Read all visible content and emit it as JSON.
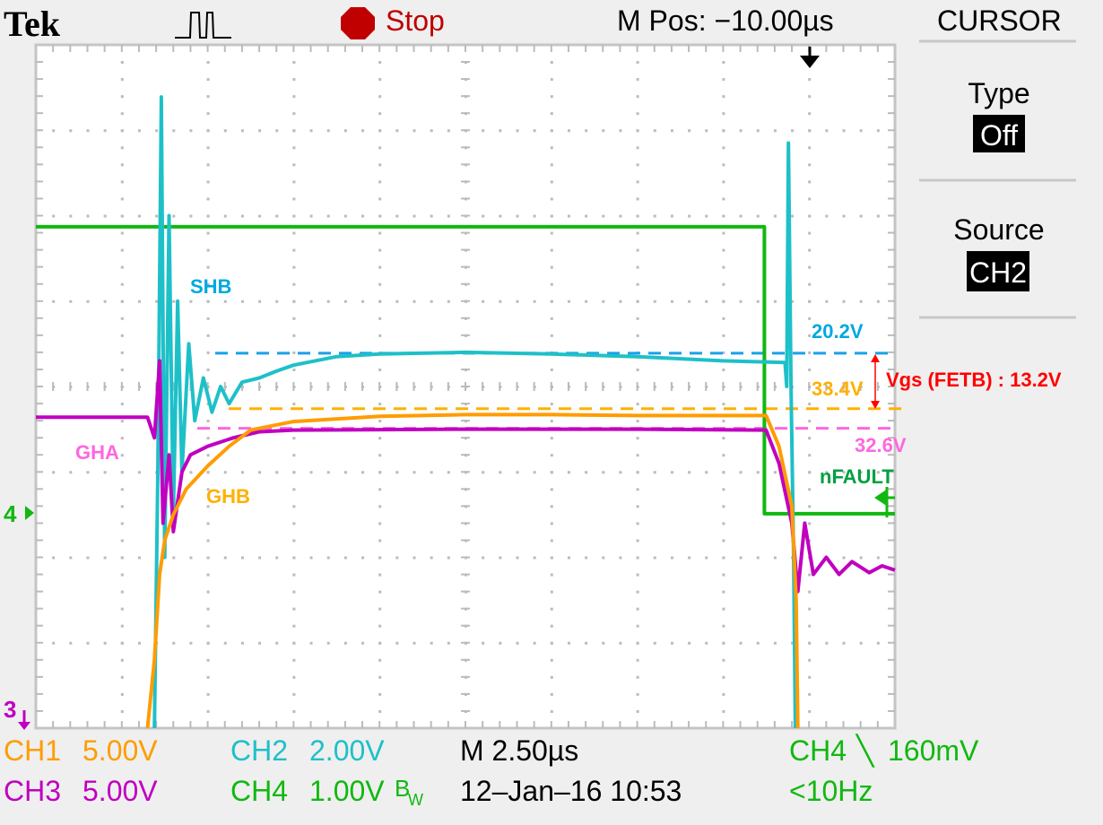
{
  "header": {
    "brand": "Tek",
    "acquire_icon": "pulse-waveform-icon",
    "run_state_icon": "stop-octagon-icon",
    "run_state": "Stop",
    "m_pos": "M Pos: −10.00µs"
  },
  "side_menu": {
    "title": "CURSOR",
    "items": [
      {
        "label": "Type",
        "value": "Off"
      },
      {
        "label": "Source",
        "value": "CH2"
      }
    ]
  },
  "status": {
    "ch1": {
      "name": "CH1",
      "scale": "5.00V"
    },
    "ch2": {
      "name": "CH2",
      "scale": "2.00V"
    },
    "ch3": {
      "name": "CH3",
      "scale": "5.00V"
    },
    "ch4": {
      "name": "CH4",
      "scale": "1.00V",
      "bw_mark": "B",
      "bw_sub": "W"
    },
    "timebase": "M 2.50µs",
    "date_time": "12–Jan–16 10:53",
    "trigger": {
      "source": "CH4",
      "slope_icon": "falling-edge-icon",
      "slope": "╲",
      "level": "160mV"
    },
    "trigger_freq": "<10Hz"
  },
  "markers": {
    "ch4": "4",
    "ch3": "3"
  },
  "colors": {
    "ch1": "#ff9c00",
    "ch2": "#1ec0c8",
    "ch3": "#c000c0",
    "ch4": "#10b810",
    "stop": "#c00000",
    "annotation_red": "#ff0000",
    "shb_label": "#00a8e0",
    "gha_label": "#ff66e0",
    "ghb_label": "#ffb000",
    "nfault_label": "#00a040"
  },
  "chart_data": {
    "type": "line",
    "grid": true,
    "x_unit": "div",
    "y_unit": "div",
    "xlim": [
      0,
      10
    ],
    "ylim": [
      0,
      8
    ],
    "series": [
      {
        "name": "nFAULT",
        "channel": "CH4",
        "color": "#10b810",
        "points": [
          [
            0,
            5.87
          ],
          [
            8.48,
            5.87
          ],
          [
            8.48,
            2.51
          ],
          [
            10,
            2.51
          ]
        ]
      },
      {
        "name": "SHB",
        "channel": "CH2",
        "color": "#1ec0c8",
        "points": [
          [
            1.38,
            0
          ],
          [
            1.42,
            3
          ],
          [
            1.46,
            7.39
          ],
          [
            1.5,
            2
          ],
          [
            1.55,
            6
          ],
          [
            1.6,
            2.5
          ],
          [
            1.65,
            5
          ],
          [
            1.7,
            3
          ],
          [
            1.78,
            4.5
          ],
          [
            1.85,
            3.6
          ],
          [
            1.95,
            4.1
          ],
          [
            2.05,
            3.7
          ],
          [
            2.15,
            4
          ],
          [
            2.25,
            3.8
          ],
          [
            2.4,
            4.05
          ],
          [
            2.6,
            4.1
          ],
          [
            2.8,
            4.18
          ],
          [
            3.0,
            4.25
          ],
          [
            3.5,
            4.35
          ],
          [
            4,
            4.38
          ],
          [
            5,
            4.4
          ],
          [
            6,
            4.38
          ],
          [
            7,
            4.35
          ],
          [
            8,
            4.3
          ],
          [
            8.72,
            4.28
          ],
          [
            8.74,
            4.0
          ],
          [
            8.76,
            6.85
          ],
          [
            8.79,
            4.0
          ],
          [
            8.82,
            2
          ],
          [
            8.84,
            0
          ]
        ]
      },
      {
        "name": "GHA",
        "channel": "CH3",
        "color": "#c000c0",
        "points": [
          [
            0,
            3.64
          ],
          [
            1.3,
            3.64
          ],
          [
            1.38,
            3.4
          ],
          [
            1.44,
            4.3
          ],
          [
            1.48,
            2.4
          ],
          [
            1.55,
            3.2
          ],
          [
            1.6,
            2.3
          ],
          [
            1.7,
            3.0
          ],
          [
            1.8,
            3.2
          ],
          [
            2,
            3.3
          ],
          [
            2.3,
            3.4
          ],
          [
            2.6,
            3.47
          ],
          [
            3,
            3.49
          ],
          [
            5,
            3.5
          ],
          [
            7,
            3.5
          ],
          [
            8.5,
            3.49
          ],
          [
            8.65,
            3.1
          ],
          [
            8.8,
            2.4
          ],
          [
            8.87,
            1.6
          ],
          [
            8.95,
            2.4
          ],
          [
            9.05,
            1.8
          ],
          [
            9.2,
            2.0
          ],
          [
            9.35,
            1.8
          ],
          [
            9.5,
            1.95
          ],
          [
            9.7,
            1.82
          ],
          [
            9.85,
            1.9
          ],
          [
            10,
            1.85
          ]
        ]
      },
      {
        "name": "GHB",
        "channel": "CH1",
        "color": "#ff9c00",
        "points": [
          [
            1.3,
            0
          ],
          [
            1.38,
            0.8
          ],
          [
            1.44,
            1.8
          ],
          [
            1.5,
            2.2
          ],
          [
            1.6,
            2.5
          ],
          [
            1.75,
            2.8
          ],
          [
            2,
            3.07
          ],
          [
            2.25,
            3.3
          ],
          [
            2.5,
            3.49
          ],
          [
            3,
            3.59
          ],
          [
            4,
            3.65
          ],
          [
            5,
            3.67
          ],
          [
            6,
            3.67
          ],
          [
            7,
            3.66
          ],
          [
            8.5,
            3.66
          ],
          [
            8.65,
            3.3
          ],
          [
            8.8,
            2.6
          ],
          [
            8.85,
            1.5
          ],
          [
            8.87,
            0
          ]
        ]
      }
    ],
    "reference_levels": [
      {
        "label": "20.2V",
        "level_div": 4.39,
        "color": "#1aa0e8"
      },
      {
        "label": "33.4V",
        "level_div": 3.74,
        "color": "#ffb000"
      },
      {
        "label": "32.6V",
        "level_div": 3.51,
        "color": "#ff66e0"
      }
    ],
    "annotations": {
      "shb": "SHB",
      "gha": "GHA",
      "ghb": "GHB",
      "nfault": "nFAULT",
      "vgs": "Vgs (FETB) : 13.2V"
    }
  }
}
